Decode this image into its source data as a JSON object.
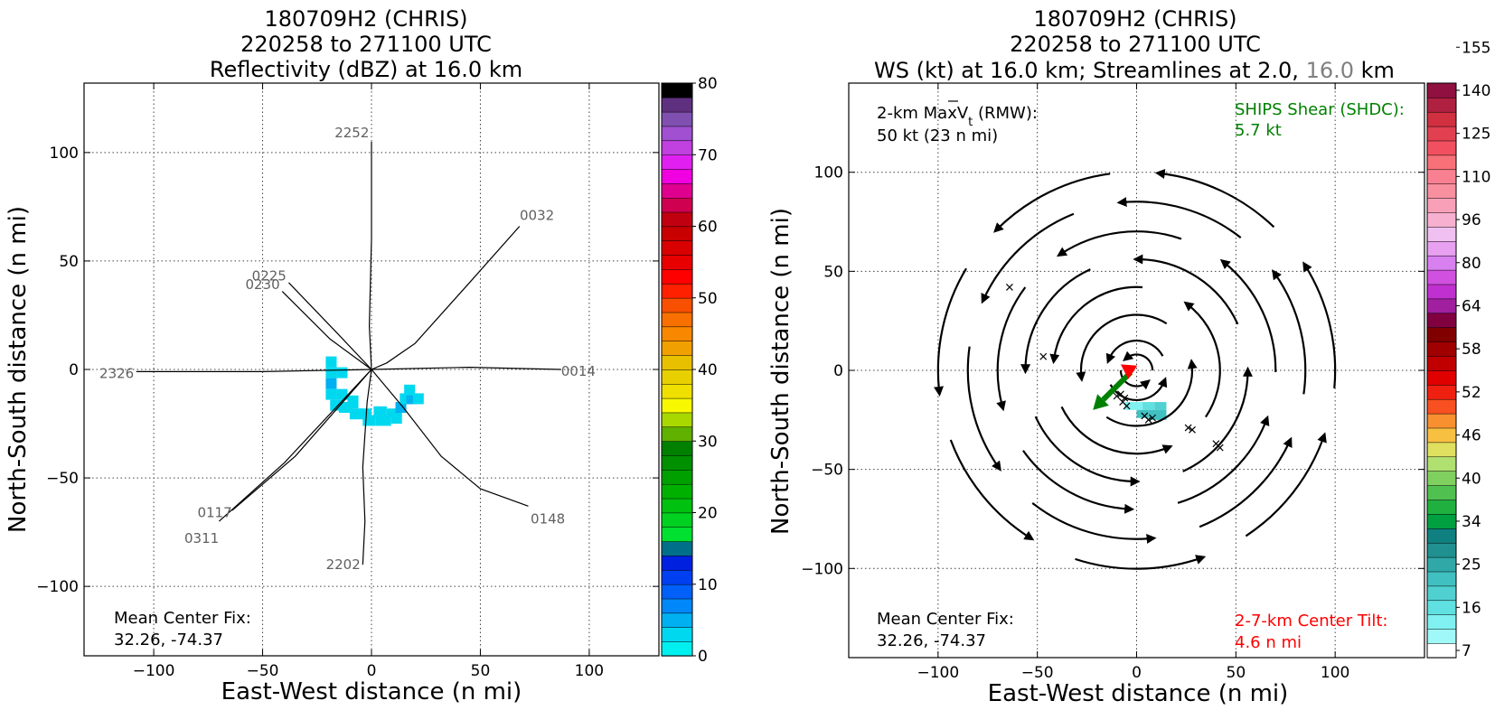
{
  "left_panel": {
    "title_lines": [
      "180709H2 (CHRIS)",
      "220258 to 271100 UTC",
      "Reflectivity (dBZ) at 16.0 km"
    ],
    "xlabel": "East-West distance (n mi)",
    "ylabel": "North-South distance (n mi)",
    "note_lines": [
      "Mean Center Fix:",
      "32.26, -74.37"
    ]
  },
  "right_panel": {
    "title_lines": [
      "180709H2 (CHRIS)",
      "220258 to 271100 UTC",
      "WS (kt) at 16.0 km; Streamlines at 2.0,",
      "16.0",
      "km"
    ],
    "xlabel": "East-West distance (n mi)",
    "ylabel": "North-South distance (n mi)",
    "note_lines": [
      "Mean Center Fix:",
      "32.26, -74.37"
    ],
    "vmax_lines": [
      "2-km MaxV",
      "t",
      "(RMW):",
      "50 kt (23 n mi)"
    ],
    "shear_lines": [
      "SHIPS Shear (SHDC):",
      "5.7 kt"
    ],
    "tilt_lines": [
      "2-7-km Center Tilt:",
      "4.6 n mi"
    ],
    "colors": {
      "shear": "#008000",
      "tilt": "#ff0000",
      "grey_title": "#808080"
    }
  },
  "chart_data": [
    {
      "type": "heatmap",
      "title": "180709H2 (CHRIS) 220258 to 271100 UTC Reflectivity (dBZ) at 16.0 km",
      "xlabel": "East-West distance (n mi)",
      "ylabel": "North-South distance (n mi)",
      "xlim": [
        -132,
        132
      ],
      "ylim": [
        -132,
        132
      ],
      "xticks": [
        "−100",
        "−50",
        "0",
        "50",
        "100"
      ],
      "yticks": [
        "−100",
        "−50",
        "0",
        "50",
        "100"
      ],
      "grid": true,
      "colorbar": {
        "label_values": [
          "0",
          "10",
          "20",
          "30",
          "40",
          "50",
          "60",
          "70",
          "80"
        ],
        "range": [
          0,
          80
        ],
        "colors": [
          "#00f0f0",
          "#00d8f0",
          "#00b0f0",
          "#0088f8",
          "#0060f8",
          "#0040f0",
          "#0020e0",
          "#00708a",
          "#00e030",
          "#00d020",
          "#00c010",
          "#00b000",
          "#00a000",
          "#009000",
          "#008000",
          "#60b000",
          "#a8d800",
          "#f8f800",
          "#f0e000",
          "#e8d000",
          "#e8c000",
          "#f0a000",
          "#f88800",
          "#f87000",
          "#f85000",
          "#ff2000",
          "#ff0000",
          "#e80000",
          "#d80000",
          "#c80000",
          "#c00010",
          "#d00050",
          "#e00090",
          "#f000e0",
          "#e020f0",
          "#c040e0",
          "#a050d0",
          "#8050b0",
          "#603080",
          "#000000"
        ]
      },
      "flight_track_labels": [
        {
          "text": "2252",
          "x": -9,
          "y": 107
        },
        {
          "text": "0032",
          "x": 76,
          "y": 69
        },
        {
          "text": "0225",
          "x": -47,
          "y": 41
        },
        {
          "text": "0230",
          "x": -50,
          "y": 37
        },
        {
          "text": "2326",
          "x": -117,
          "y": -4
        },
        {
          "text": "0014",
          "x": 95,
          "y": -3
        },
        {
          "text": "0117",
          "x": -72,
          "y": -68
        },
        {
          "text": "0311",
          "x": -78,
          "y": -80
        },
        {
          "text": "0148",
          "x": 81,
          "y": -71
        },
        {
          "text": "2202",
          "x": -13,
          "y": -92
        }
      ],
      "flight_tracks": [
        [
          [
            0,
            105
          ],
          [
            0,
            60
          ],
          [
            -1,
            20
          ],
          [
            0,
            0
          ]
        ],
        [
          [
            68,
            66
          ],
          [
            45,
            40
          ],
          [
            20,
            12
          ],
          [
            7,
            3
          ],
          [
            0,
            0
          ]
        ],
        [
          [
            -38,
            40
          ],
          [
            -16,
            17
          ],
          [
            0,
            0
          ]
        ],
        [
          [
            -41,
            36
          ],
          [
            -19,
            14
          ],
          [
            0,
            0
          ]
        ],
        [
          [
            -108,
            -1
          ],
          [
            -50,
            -1
          ],
          [
            0,
            0
          ]
        ],
        [
          [
            87,
            0
          ],
          [
            45,
            1
          ],
          [
            0,
            0
          ]
        ],
        [
          [
            -64,
            -65
          ],
          [
            -35,
            -40
          ],
          [
            0,
            0
          ]
        ],
        [
          [
            -70,
            -70
          ],
          [
            -40,
            -43
          ],
          [
            0,
            0
          ]
        ],
        [
          [
            72,
            -63
          ],
          [
            50,
            -55
          ],
          [
            32,
            -40
          ],
          [
            15,
            -18
          ],
          [
            0,
            0
          ]
        ],
        [
          [
            -4,
            -90
          ],
          [
            -3,
            -70
          ],
          [
            -4,
            -45
          ],
          [
            -2,
            -15
          ],
          [
            0,
            0
          ]
        ]
      ],
      "reflectivity_cells": [
        {
          "x": -21,
          "y": 1,
          "w": 5,
          "h": 5,
          "dbz": 3
        },
        {
          "x": -21,
          "y": -4,
          "w": 5,
          "h": 5,
          "dbz": 3
        },
        {
          "x": -21,
          "y": -9,
          "w": 5,
          "h": 5,
          "dbz": 5
        },
        {
          "x": -21,
          "y": -14,
          "w": 5,
          "h": 5,
          "dbz": 3
        },
        {
          "x": -16,
          "y": -4,
          "w": 5,
          "h": 5,
          "dbz": 2
        },
        {
          "x": -16,
          "y": -14,
          "w": 5,
          "h": 5,
          "dbz": 2
        },
        {
          "x": -19,
          "y": -19,
          "w": 6,
          "h": 5,
          "dbz": 2
        },
        {
          "x": -15,
          "y": -20,
          "w": 6,
          "h": 5,
          "dbz": 3
        },
        {
          "x": -11,
          "y": -18,
          "w": 5,
          "h": 6,
          "dbz": 2
        },
        {
          "x": -10,
          "y": -23,
          "w": 6,
          "h": 5,
          "dbz": 3
        },
        {
          "x": -6,
          "y": -22,
          "w": 6,
          "h": 4,
          "dbz": 2
        },
        {
          "x": -4,
          "y": -26,
          "w": 6,
          "h": 5,
          "dbz": 2
        },
        {
          "x": 1,
          "y": -22,
          "w": 6,
          "h": 5,
          "dbz": 2
        },
        {
          "x": 2,
          "y": -26,
          "w": 7,
          "h": 5,
          "dbz": 3
        },
        {
          "x": 7,
          "y": -22,
          "w": 5,
          "h": 4,
          "dbz": 2
        },
        {
          "x": 9,
          "y": -25,
          "w": 5,
          "h": 5,
          "dbz": 3
        },
        {
          "x": 11,
          "y": -20,
          "w": 5,
          "h": 5,
          "dbz": 4
        },
        {
          "x": 13,
          "y": -16,
          "w": 5,
          "h": 5,
          "dbz": 3
        },
        {
          "x": 16,
          "y": -16,
          "w": 5,
          "h": 5,
          "dbz": 5
        },
        {
          "x": 15,
          "y": -12,
          "w": 5,
          "h": 5,
          "dbz": 3
        },
        {
          "x": 19,
          "y": -16,
          "w": 5,
          "h": 5,
          "dbz": 3
        }
      ]
    },
    {
      "type": "heatmap",
      "title": "180709H2 (CHRIS) 220258 to 271100 UTC WS (kt) at 16.0 km; Streamlines at 2.0, 16.0 km",
      "xlabel": "East-West distance (n mi)",
      "ylabel": "North-South distance (n mi)",
      "xlim": [
        -145,
        145
      ],
      "ylim": [
        -145,
        145
      ],
      "xticks": [
        "−100",
        "−50",
        "0",
        "50",
        "100"
      ],
      "yticks": [
        "−100",
        "−50",
        "0",
        "50",
        "100"
      ],
      "grid": true,
      "colorbar": {
        "label_values": [
          "7",
          "16",
          "25",
          "34",
          "40",
          "46",
          "52",
          "58",
          "64",
          "80",
          "96",
          "110",
          "125",
          "140",
          "155"
        ],
        "colors": [
          "#ffffff",
          "#a0f8f8",
          "#80f0f0",
          "#60e0e0",
          "#50d0d0",
          "#40c0c0",
          "#30a8a8",
          "#209090",
          "#108080",
          "#00a040",
          "#20b040",
          "#50c050",
          "#80d060",
          "#b0e070",
          "#e0e060",
          "#f8c040",
          "#f89030",
          "#f85020",
          "#f02010",
          "#e00000",
          "#c00000",
          "#a00000",
          "#800000",
          "#800040",
          "#a020a0",
          "#c030d0",
          "#d050e0",
          "#d880f0",
          "#e8a0f0",
          "#f0c0f0",
          "#f8b0d0",
          "#f8a0b8",
          "#f890a0",
          "#f88090",
          "#f87078",
          "#f05060",
          "#e04050",
          "#d03040",
          "#b02040",
          "#901040"
        ]
      },
      "ws_cells": [
        {
          "x": -6,
          "y": -20,
          "w": 9,
          "h": 4,
          "kt": 15
        },
        {
          "x": 3,
          "y": -20,
          "w": 6,
          "h": 4,
          "kt": 18
        },
        {
          "x": 9,
          "y": -20,
          "w": 6,
          "h": 4,
          "kt": 21
        },
        {
          "x": 0,
          "y": -24,
          "w": 6,
          "h": 4,
          "kt": 24
        },
        {
          "x": 6,
          "y": -25,
          "w": 9,
          "h": 5,
          "kt": 27
        }
      ],
      "center_fixes": [
        {
          "x": -8,
          "y": -12
        },
        {
          "x": -6,
          "y": -14
        },
        {
          "x": -10,
          "y": -13
        },
        {
          "x": -7,
          "y": -16
        },
        {
          "x": -5,
          "y": -18
        },
        {
          "x": 4,
          "y": -23
        },
        {
          "x": 6,
          "y": -25
        },
        {
          "x": 8,
          "y": -24
        },
        {
          "x": 26,
          "y": -29
        },
        {
          "x": 28,
          "y": -30
        },
        {
          "x": 40,
          "y": -37
        },
        {
          "x": 42,
          "y": -39
        },
        {
          "x": -64,
          "y": 42
        },
        {
          "x": -47,
          "y": 7
        }
      ],
      "shear_vector": {
        "from": [
          -3,
          -1
        ],
        "to": [
          -22,
          -20
        ],
        "color": "#008000"
      },
      "tilt_vector": {
        "from": [
          -5,
          1
        ],
        "to": [
          -8,
          3
        ],
        "color": "#ff0000"
      },
      "streamline_rings_radius": [
        8,
        15,
        28,
        42,
        56,
        70,
        85,
        100
      ]
    }
  ]
}
